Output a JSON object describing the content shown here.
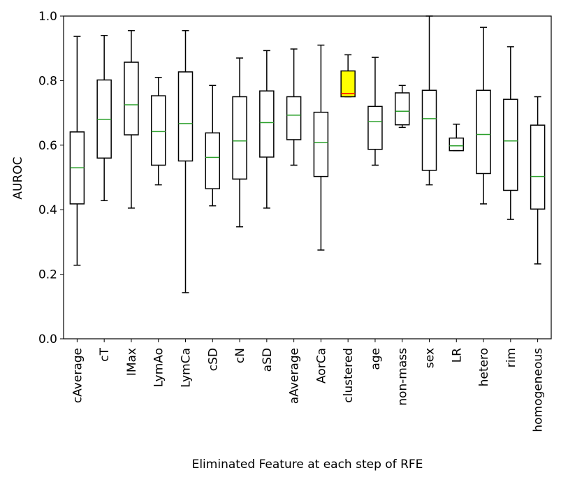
{
  "chart_data": {
    "type": "boxplot",
    "xlabel": "Eliminated Feature at each step of RFE",
    "ylabel": "AUROC",
    "ylim": [
      0.0,
      1.0
    ],
    "yticks": [
      "0.0",
      "0.2",
      "0.4",
      "0.6",
      "0.8",
      "1.0"
    ],
    "grid": false,
    "colors": {
      "box_edge": "#000000",
      "median": "#2ca02c",
      "highlight_fill": "#ffff00",
      "highlight_median": "#ff0000"
    },
    "categories": [
      "cAverage",
      "cT",
      "IMax",
      "LymAo",
      "LymCa",
      "cSD",
      "cN",
      "aSD",
      "aAverage",
      "AorCa",
      "clustered",
      "age",
      "non-mass",
      "sex",
      "LR",
      "hetero",
      "rim",
      "homogeneous"
    ],
    "boxes": [
      {
        "label": "cAverage",
        "whisker_low": 0.228,
        "q1": 0.418,
        "median": 0.53,
        "q3": 0.641,
        "whisker_high": 0.937
      },
      {
        "label": "cT",
        "whisker_low": 0.428,
        "q1": 0.56,
        "median": 0.68,
        "q3": 0.802,
        "whisker_high": 0.94
      },
      {
        "label": "IMax",
        "whisker_low": 0.405,
        "q1": 0.632,
        "median": 0.725,
        "q3": 0.857,
        "whisker_high": 0.955
      },
      {
        "label": "LymAo",
        "whisker_low": 0.477,
        "q1": 0.538,
        "median": 0.642,
        "q3": 0.753,
        "whisker_high": 0.81
      },
      {
        "label": "LymCa",
        "whisker_low": 0.143,
        "q1": 0.551,
        "median": 0.667,
        "q3": 0.827,
        "whisker_high": 0.955
      },
      {
        "label": "cSD",
        "whisker_low": 0.412,
        "q1": 0.465,
        "median": 0.562,
        "q3": 0.638,
        "whisker_high": 0.785
      },
      {
        "label": "cN",
        "whisker_low": 0.347,
        "q1": 0.495,
        "median": 0.613,
        "q3": 0.75,
        "whisker_high": 0.87
      },
      {
        "label": "aSD",
        "whisker_low": 0.405,
        "q1": 0.563,
        "median": 0.67,
        "q3": 0.768,
        "whisker_high": 0.893
      },
      {
        "label": "aAverage",
        "whisker_low": 0.538,
        "q1": 0.617,
        "median": 0.693,
        "q3": 0.75,
        "whisker_high": 0.898
      },
      {
        "label": "AorCa",
        "whisker_low": 0.275,
        "q1": 0.503,
        "median": 0.608,
        "q3": 0.702,
        "whisker_high": 0.91
      },
      {
        "label": "clustered",
        "whisker_low": 0.75,
        "q1": 0.75,
        "median": 0.76,
        "q3": 0.83,
        "whisker_high": 0.88,
        "highlight": true
      },
      {
        "label": "age",
        "whisker_low": 0.538,
        "q1": 0.587,
        "median": 0.673,
        "q3": 0.72,
        "whisker_high": 0.872
      },
      {
        "label": "non-mass",
        "whisker_low": 0.655,
        "q1": 0.663,
        "median": 0.705,
        "q3": 0.762,
        "whisker_high": 0.785
      },
      {
        "label": "sex",
        "whisker_low": 0.477,
        "q1": 0.522,
        "median": 0.682,
        "q3": 0.77,
        "whisker_high": 1.0
      },
      {
        "label": "LR",
        "whisker_low": 0.583,
        "q1": 0.583,
        "median": 0.598,
        "q3": 0.622,
        "whisker_high": 0.665
      },
      {
        "label": "hetero",
        "whisker_low": 0.418,
        "q1": 0.512,
        "median": 0.633,
        "q3": 0.77,
        "whisker_high": 0.965
      },
      {
        "label": "rim",
        "whisker_low": 0.37,
        "q1": 0.46,
        "median": 0.613,
        "q3": 0.742,
        "whisker_high": 0.905
      },
      {
        "label": "homogeneous",
        "whisker_low": 0.232,
        "q1": 0.402,
        "median": 0.503,
        "q3": 0.662,
        "whisker_high": 0.75
      }
    ]
  }
}
